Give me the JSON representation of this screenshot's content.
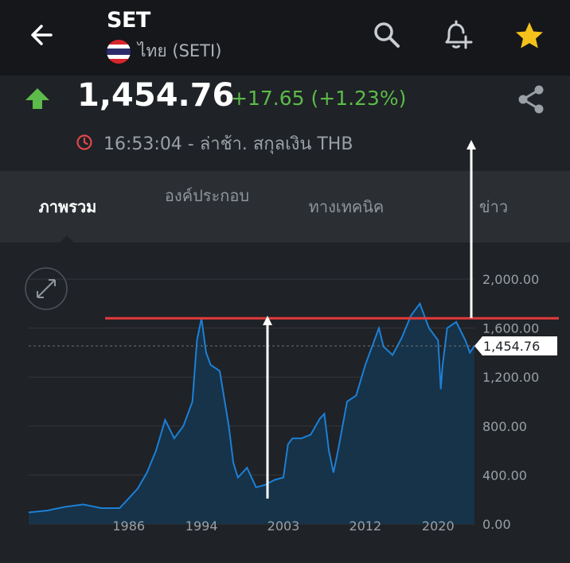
{
  "header": {
    "ticker": "SET",
    "exchange": "ไทย (SETI)",
    "icons": {
      "back": "arrow-left-icon",
      "search": "search-icon",
      "alert": "add-alert-bell-icon",
      "favorite": "star-icon"
    },
    "colors": {
      "star": "#f5c21b",
      "background": "#15171a"
    }
  },
  "quote": {
    "price": "1,454.76",
    "change": "+17.65 (+1.23%)",
    "status": "16:53:04 - ล่าช้า. สกุลเงิน THB",
    "colors": {
      "up": "#5cbb4a",
      "clock": "#e0474c"
    }
  },
  "tabs": [
    {
      "label": "ภาพรวม",
      "active": true
    },
    {
      "label": "องค์ประกอบ",
      "active": false
    },
    {
      "label": "ทางเทคนิค",
      "active": false
    },
    {
      "label": "ข่าว",
      "active": false
    }
  ],
  "chart_data": {
    "type": "area",
    "x": [
      1975,
      1977,
      1979,
      1981,
      1983,
      1985,
      1986,
      1987,
      1988,
      1989,
      1990,
      1991,
      1992,
      1993,
      1993.5,
      1994,
      1994.5,
      1995,
      1996,
      1997,
      1997.5,
      1998,
      1999,
      2000,
      2001,
      2002,
      2003,
      2003.5,
      2004,
      2005,
      2006,
      2007,
      2007.5,
      2008,
      2008.5,
      2009,
      2010,
      2011,
      2012,
      2013,
      2013.5,
      2014,
      2015,
      2016,
      2017,
      2018,
      2018.5,
      2019,
      2020,
      2020.3,
      2020.5,
      2021,
      2022,
      2023,
      2023.5,
      2024
    ],
    "values": [
      95,
      110,
      140,
      160,
      130,
      130,
      210,
      290,
      420,
      600,
      850,
      700,
      800,
      1000,
      1500,
      1680,
      1400,
      1300,
      1250,
      800,
      500,
      380,
      460,
      300,
      320,
      360,
      380,
      650,
      700,
      700,
      730,
      860,
      900,
      600,
      420,
      600,
      1000,
      1050,
      1300,
      1500,
      1600,
      1450,
      1380,
      1520,
      1700,
      1800,
      1700,
      1600,
      1500,
      1100,
      1300,
      1600,
      1650,
      1500,
      1400,
      1454.76
    ],
    "current": "1,454.76",
    "xticks": [
      "1986",
      "1994",
      "2003",
      "2012",
      "2020"
    ],
    "xtick_values": [
      1986,
      1994,
      2003,
      2012,
      2020
    ],
    "yticks": [
      "2,000.00",
      "1,600.00",
      "1,200.00",
      "800.00",
      "400.00",
      "0.00"
    ],
    "ytick_values": [
      2000,
      1600,
      1200,
      800,
      400,
      0
    ],
    "xlim": [
      1975,
      2024
    ],
    "ylim": [
      0,
      2000
    ],
    "annotation_level": 1680,
    "colors": {
      "line": "#1d7fd6",
      "fill": "#163349",
      "annotation": "#e23b3b",
      "arrows": "#ffffff"
    },
    "grid": true
  }
}
